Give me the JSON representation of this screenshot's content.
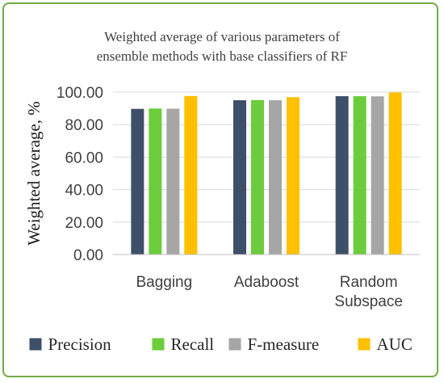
{
  "chart_data": {
    "type": "bar",
    "title_lines": [
      "Weighted average of various parameters of",
      "ensemble methods with base classifiers of RF"
    ],
    "xlabel": "",
    "ylabel": "Weighted average, %",
    "ylim": [
      0,
      100
    ],
    "yticks": [
      "0.00",
      "20.00",
      "40.00",
      "60.00",
      "80.00",
      "100.00"
    ],
    "ytick_values": [
      0,
      20,
      40,
      60,
      80,
      100
    ],
    "grid": true,
    "legend_position": "bottom",
    "categories": [
      [
        "Bagging"
      ],
      [
        "Adaboost"
      ],
      [
        "Random",
        "Subspace"
      ]
    ],
    "series": [
      {
        "name": "Precision",
        "color": "#3e5069",
        "values": [
          89.7,
          95.0,
          97.5
        ]
      },
      {
        "name": "Recall",
        "color": "#6bcd3c",
        "values": [
          89.9,
          95.1,
          97.5
        ]
      },
      {
        "name": "F-measure",
        "color": "#a6a6a6",
        "values": [
          89.8,
          95.0,
          97.4
        ]
      },
      {
        "name": "AUC",
        "color": "#ffc000",
        "values": [
          97.6,
          96.9,
          99.8
        ]
      }
    ]
  }
}
